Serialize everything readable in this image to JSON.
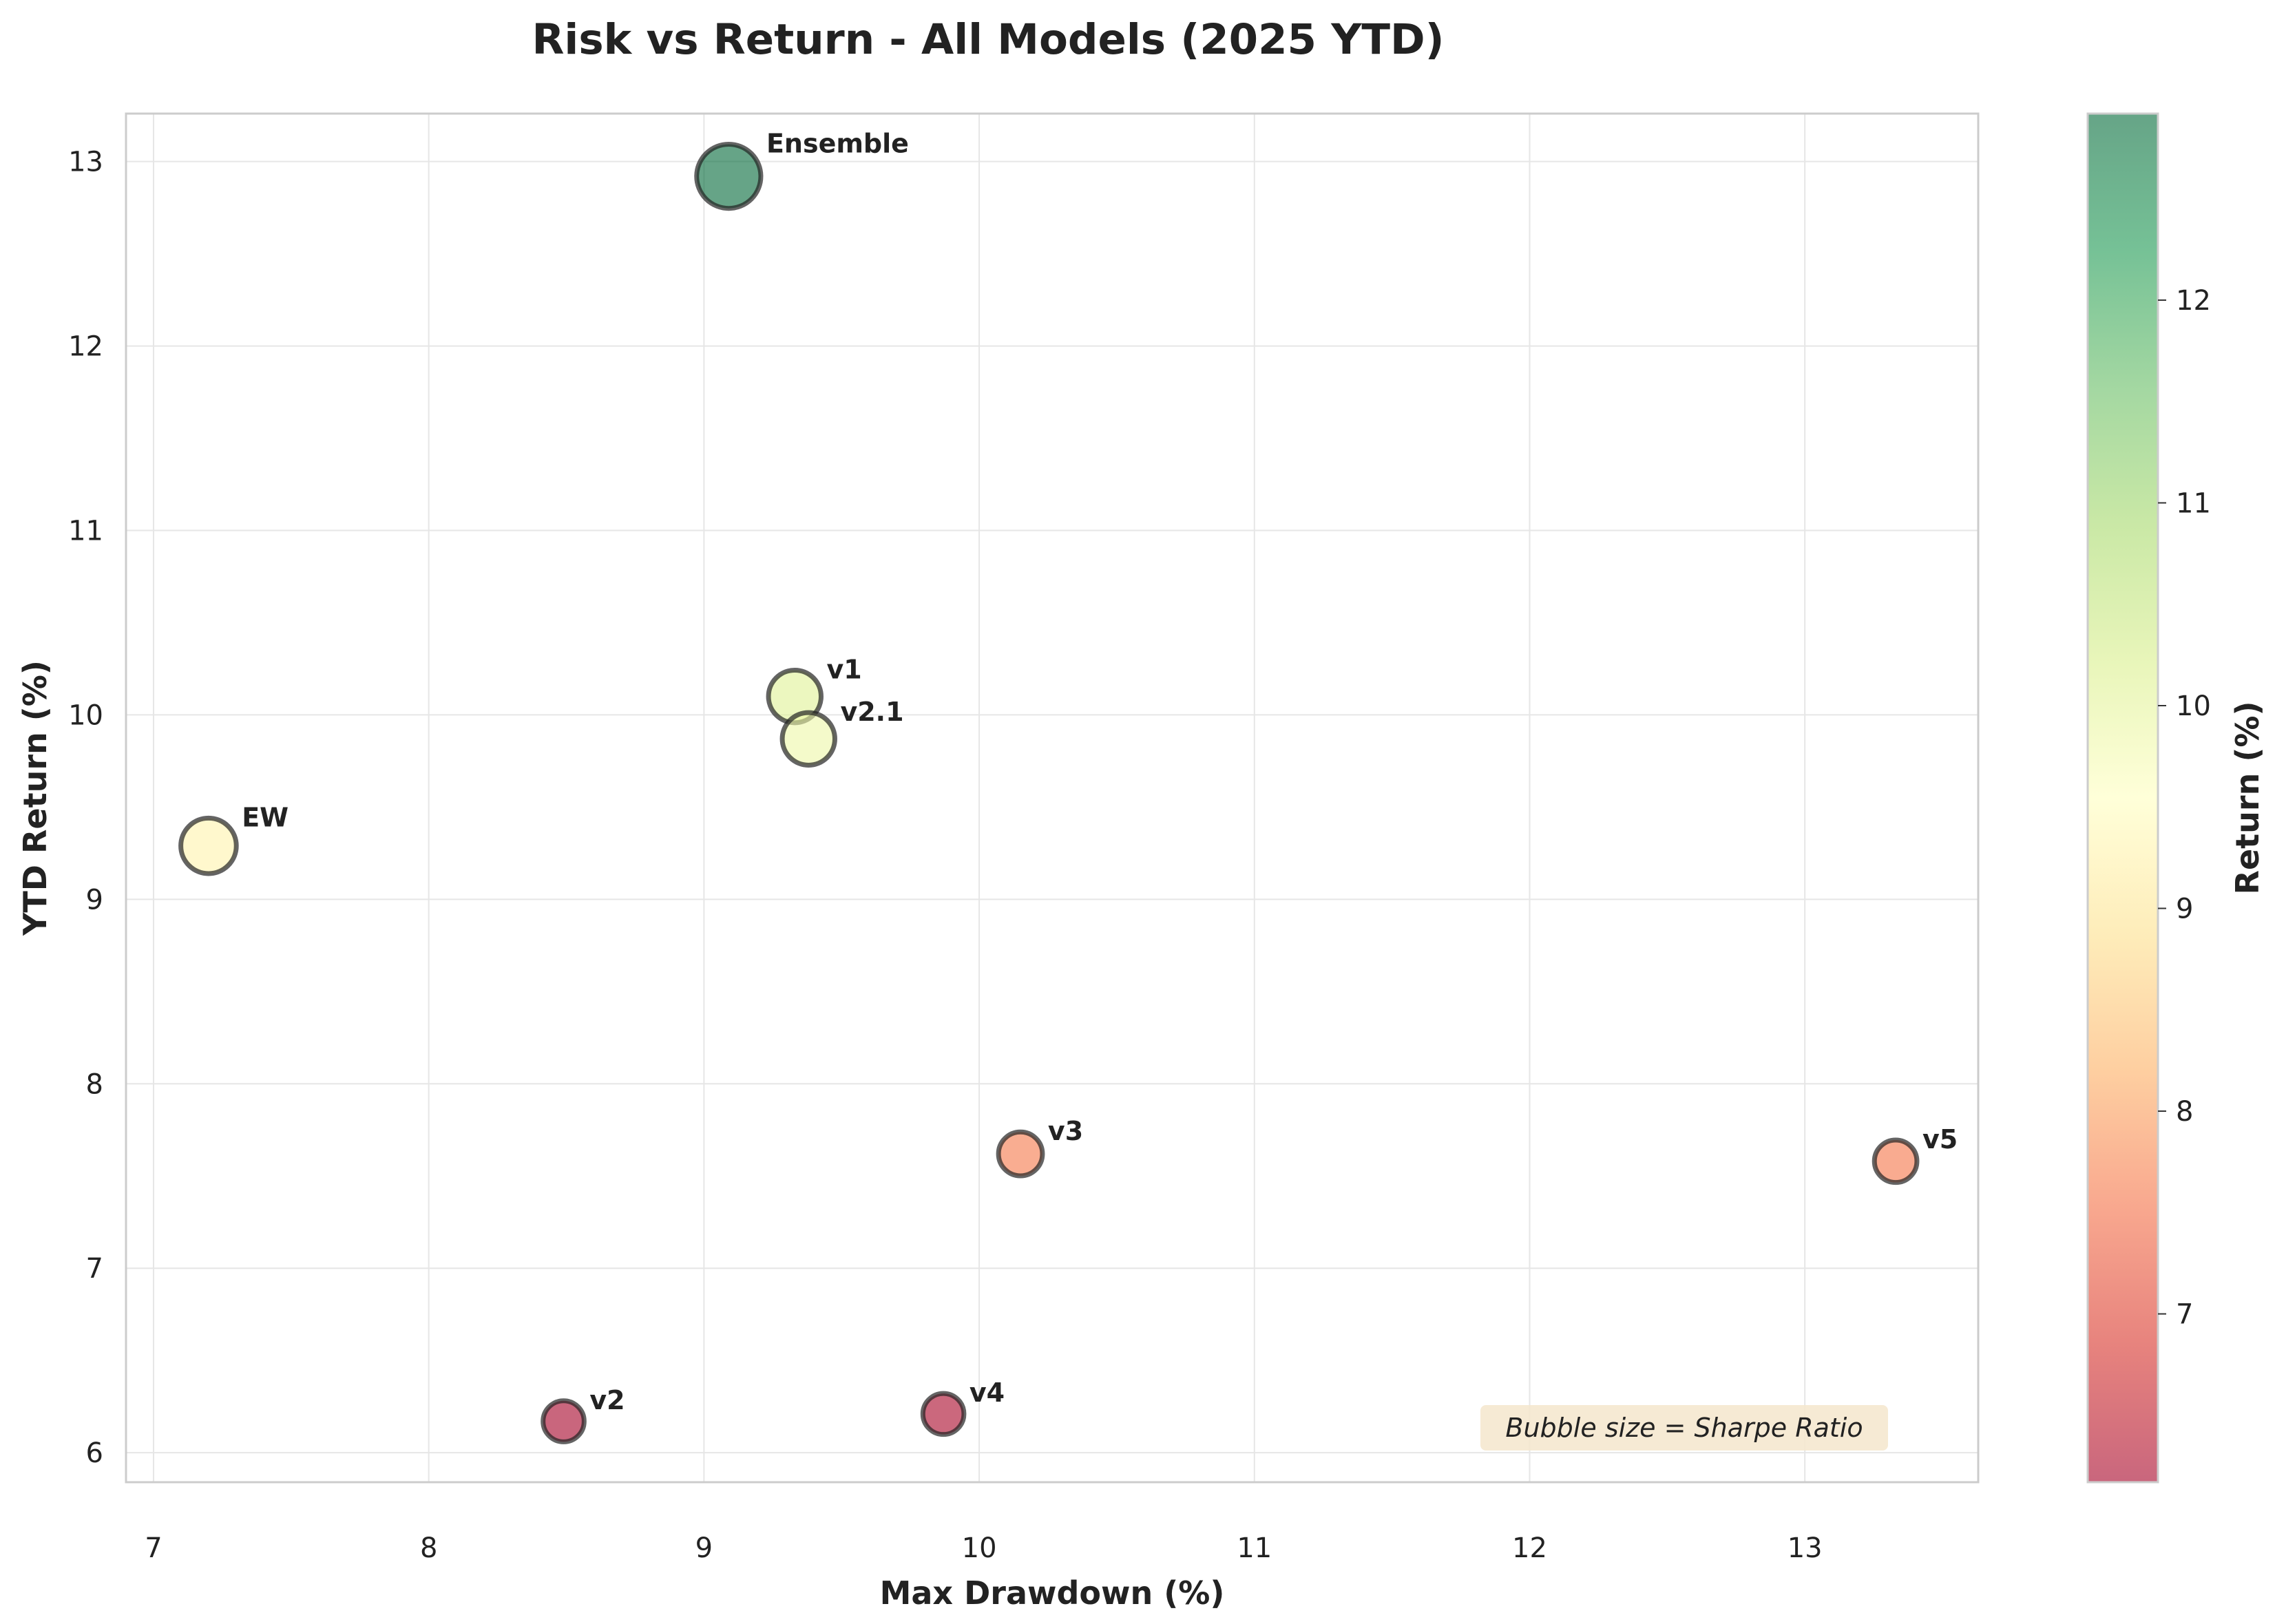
{
  "chart_data": {
    "type": "scatter",
    "title": "Risk vs Return - All Models (2025 YTD)",
    "xlabel": "Max Drawdown (%)",
    "ylabel": "YTD Return (%)",
    "xlim": [
      6.9,
      13.63
    ],
    "ylim": [
      5.84,
      13.26
    ],
    "xticks": [
      7,
      8,
      9,
      10,
      11,
      12,
      13
    ],
    "yticks": [
      6,
      7,
      8,
      9,
      10,
      11,
      12,
      13
    ],
    "grid": true,
    "points": [
      {
        "label": "Ensemble",
        "x": 9.09,
        "y": 12.92,
        "sharpe": 1.6
      },
      {
        "label": "v1",
        "x": 9.33,
        "y": 10.1,
        "sharpe": 1.2
      },
      {
        "label": "v2.1",
        "x": 9.38,
        "y": 9.87,
        "sharpe": 1.2
      },
      {
        "label": "EW",
        "x": 7.2,
        "y": 9.29,
        "sharpe": 1.3
      },
      {
        "label": "v3",
        "x": 10.15,
        "y": 7.62,
        "sharpe": 0.9
      },
      {
        "label": "v5",
        "x": 13.33,
        "y": 7.58,
        "sharpe": 0.85
      },
      {
        "label": "v2",
        "x": 8.49,
        "y": 6.17,
        "sharpe": 0.8
      },
      {
        "label": "v4",
        "x": 9.87,
        "y": 6.21,
        "sharpe": 0.8
      }
    ],
    "annotation": "Bubble size = Sharpe Ratio",
    "colorbar": {
      "label": "Return (%)",
      "ticks": [
        7,
        8,
        9,
        10,
        11,
        12
      ],
      "range": [
        6.17,
        12.92
      ],
      "colormap": "RdYlGn",
      "stops": [
        "#a50026",
        "#d73027",
        "#f46d43",
        "#fdae61",
        "#fee08b",
        "#ffffbf",
        "#d9ef8b",
        "#a6d96a",
        "#66bd63",
        "#1a9850",
        "#006837"
      ]
    }
  }
}
